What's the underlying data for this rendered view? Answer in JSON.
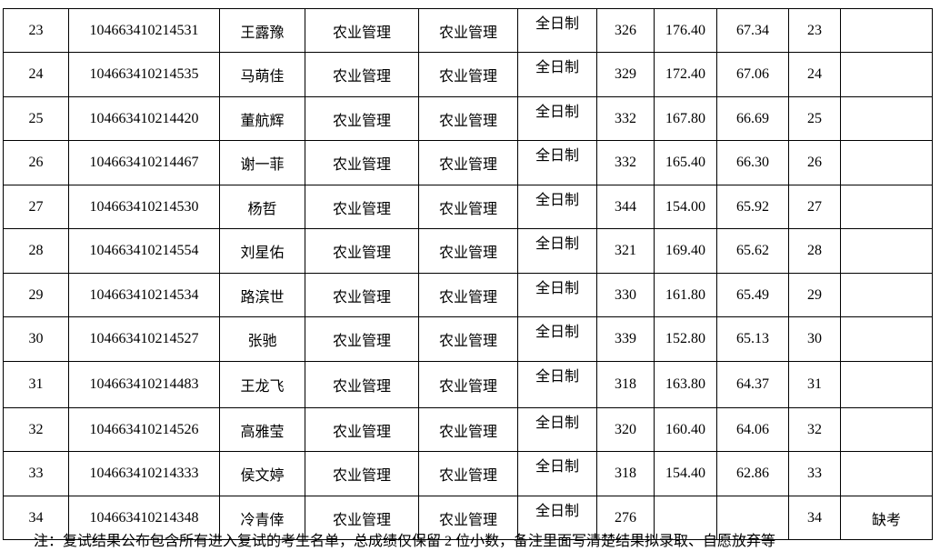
{
  "rows": [
    {
      "no": "23",
      "exam_id": "104663410214531",
      "name": "王露豫",
      "major": "农业管理",
      "direction": "农业管理",
      "study_mode": "全日制",
      "initial_score": "326",
      "retest_score": "176.40",
      "total_score": "67.34",
      "rank": "23",
      "remark": ""
    },
    {
      "no": "24",
      "exam_id": "104663410214535",
      "name": "马萌佳",
      "major": "农业管理",
      "direction": "农业管理",
      "study_mode": "全日制",
      "initial_score": "329",
      "retest_score": "172.40",
      "total_score": "67.06",
      "rank": "24",
      "remark": ""
    },
    {
      "no": "25",
      "exam_id": "104663410214420",
      "name": "董航辉",
      "major": "农业管理",
      "direction": "农业管理",
      "study_mode": "全日制",
      "initial_score": "332",
      "retest_score": "167.80",
      "total_score": "66.69",
      "rank": "25",
      "remark": ""
    },
    {
      "no": "26",
      "exam_id": "104663410214467",
      "name": "谢一菲",
      "major": "农业管理",
      "direction": "农业管理",
      "study_mode": "全日制",
      "initial_score": "332",
      "retest_score": "165.40",
      "total_score": "66.30",
      "rank": "26",
      "remark": ""
    },
    {
      "no": "27",
      "exam_id": "104663410214530",
      "name": "杨哲",
      "major": "农业管理",
      "direction": "农业管理",
      "study_mode": "全日制",
      "initial_score": "344",
      "retest_score": "154.00",
      "total_score": "65.92",
      "rank": "27",
      "remark": ""
    },
    {
      "no": "28",
      "exam_id": "104663410214554",
      "name": "刘星佑",
      "major": "农业管理",
      "direction": "农业管理",
      "study_mode": "全日制",
      "initial_score": "321",
      "retest_score": "169.40",
      "total_score": "65.62",
      "rank": "28",
      "remark": ""
    },
    {
      "no": "29",
      "exam_id": "104663410214534",
      "name": "路滨世",
      "major": "农业管理",
      "direction": "农业管理",
      "study_mode": "全日制",
      "initial_score": "330",
      "retest_score": "161.80",
      "total_score": "65.49",
      "rank": "29",
      "remark": ""
    },
    {
      "no": "30",
      "exam_id": "104663410214527",
      "name": "张驰",
      "major": "农业管理",
      "direction": "农业管理",
      "study_mode": "全日制",
      "initial_score": "339",
      "retest_score": "152.80",
      "total_score": "65.13",
      "rank": "30",
      "remark": ""
    },
    {
      "no": "31",
      "exam_id": "104663410214483",
      "name": "王龙飞",
      "major": "农业管理",
      "direction": "农业管理",
      "study_mode": "全日制",
      "initial_score": "318",
      "retest_score": "163.80",
      "total_score": "64.37",
      "rank": "31",
      "remark": ""
    },
    {
      "no": "32",
      "exam_id": "104663410214526",
      "name": "高雅莹",
      "major": "农业管理",
      "direction": "农业管理",
      "study_mode": "全日制",
      "initial_score": "320",
      "retest_score": "160.40",
      "total_score": "64.06",
      "rank": "32",
      "remark": ""
    },
    {
      "no": "33",
      "exam_id": "104663410214333",
      "name": "侯文婷",
      "major": "农业管理",
      "direction": "农业管理",
      "study_mode": "全日制",
      "initial_score": "318",
      "retest_score": "154.40",
      "total_score": "62.86",
      "rank": "33",
      "remark": ""
    },
    {
      "no": "34",
      "exam_id": "104663410214348",
      "name": "冷青倖",
      "major": "农业管理",
      "direction": "农业管理",
      "study_mode": "全日制",
      "initial_score": "276",
      "retest_score": "",
      "total_score": "",
      "rank": "34",
      "remark": "缺考"
    }
  ],
  "note": "注：复试结果公布包含所有进入复试的考生名单，总成绩仅保留 2 位小数，备注里面写清楚结果拟录取、自愿放弃等"
}
